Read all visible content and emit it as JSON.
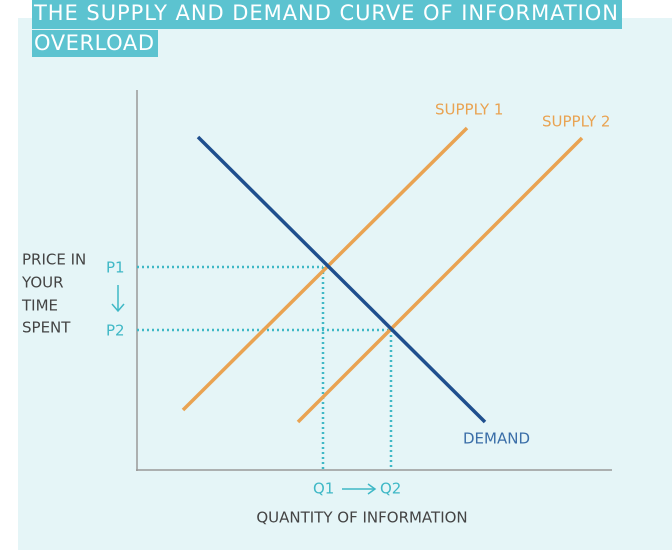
{
  "header": {
    "title_lines": [
      "THE SUPPLY AND DEMAND CURVE OF INFORMATION",
      "OVERLOAD"
    ]
  },
  "y_axis_label_lines": [
    "PRICE IN",
    "YOUR",
    "TIME",
    "SPENT"
  ],
  "x_axis_label": "QUANTITY OF INFORMATION",
  "curves": {
    "supply_1": "SUPPLY 1",
    "supply_2": "SUPPLY 2",
    "demand": "DEMAND"
  },
  "price_marks": [
    "P1",
    "P2"
  ],
  "quantity_marks": [
    "Q1",
    "Q2"
  ]
}
